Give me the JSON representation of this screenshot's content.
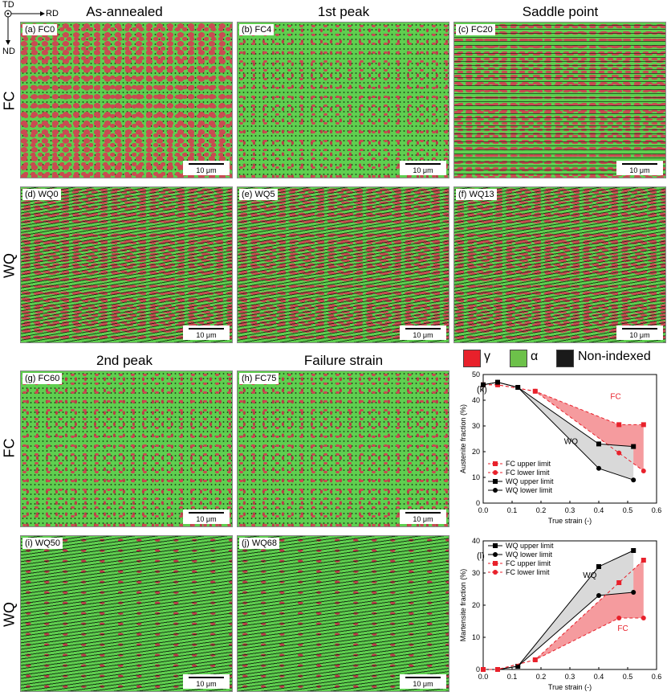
{
  "axes_orientation": {
    "td": "TD",
    "rd": "RD",
    "nd": "ND"
  },
  "column_titles": {
    "top": [
      "As-annealed",
      "1st peak",
      "Saddle point"
    ],
    "bottom": [
      "2nd peak",
      "Failure strain"
    ]
  },
  "row_labels": {
    "fc_top": "FC",
    "wq_top": "WQ",
    "fc_bottom": "FC",
    "wq_bottom": "WQ"
  },
  "panels": [
    {
      "label": "(a) FC0",
      "scale": "10 μm"
    },
    {
      "label": "(b) FC4",
      "scale": "10 μm"
    },
    {
      "label": "(c) FC20",
      "scale": "10 μm"
    },
    {
      "label": "(d) WQ0",
      "scale": "10 μm"
    },
    {
      "label": "(e) WQ5",
      "scale": "10 μm"
    },
    {
      "label": "(f) WQ13",
      "scale": "10 μm"
    },
    {
      "label": "(g) FC60",
      "scale": "10 μm"
    },
    {
      "label": "(h) FC75",
      "scale": "10 μm"
    },
    {
      "label": "(i) WQ50",
      "scale": "10 μm"
    },
    {
      "label": "(j) WQ68",
      "scale": "10 μm"
    }
  ],
  "phase_legend": [
    {
      "label": "γ",
      "color": "#e8212b"
    },
    {
      "label": "α",
      "color": "#6dc14a"
    },
    {
      "label": "Non-indexed",
      "color": "#1a1a1a"
    }
  ],
  "colors": {
    "fc": "#e8212b",
    "fc_fill": "#f59b9e",
    "wq": "#000000",
    "wq_fill": "#d9d9d9",
    "ferrite": "#5fcf4f",
    "austenite": "#c94b52"
  },
  "chart_data": [
    {
      "type": "line",
      "panel_label": "(k)",
      "xlabel": "True strain (-)",
      "ylabel": "Austenite fraction (%)",
      "xlim": [
        0,
        0.6
      ],
      "ylim": [
        0,
        50
      ],
      "xticks": [
        "0.0",
        "0.1",
        "0.2",
        "0.3",
        "0.4",
        "0.5",
        "0.6"
      ],
      "yticks": [
        "0",
        "10",
        "20",
        "30",
        "40",
        "50"
      ],
      "annotations": [
        {
          "text": "FC",
          "x": 0.44,
          "y": 40.5,
          "color": "#e8212b"
        },
        {
          "text": "WQ",
          "x": 0.28,
          "y": 23,
          "color": "#000000"
        }
      ],
      "legend_position": "bottom-left",
      "series": [
        {
          "name": "FC upper limit",
          "marker": "square",
          "color": "#e8212b",
          "dashed": true,
          "x": [
            0,
            0.05,
            0.18,
            0.47,
            0.555
          ],
          "y": [
            46,
            46,
            43.5,
            30.5,
            30.5
          ]
        },
        {
          "name": "FC lower limit",
          "marker": "circle",
          "color": "#e8212b",
          "dashed": true,
          "x": [
            0,
            0.05,
            0.18,
            0.47,
            0.555
          ],
          "y": [
            46,
            46,
            43.5,
            19.5,
            12.5
          ]
        },
        {
          "name": "WQ upper limit",
          "marker": "square",
          "color": "#000000",
          "dashed": false,
          "x": [
            0,
            0.05,
            0.12,
            0.4,
            0.52
          ],
          "y": [
            46,
            47,
            45,
            23,
            22
          ]
        },
        {
          "name": "WQ lower limit",
          "marker": "circle",
          "color": "#000000",
          "dashed": false,
          "x": [
            0,
            0.05,
            0.12,
            0.4,
            0.52
          ],
          "y": [
            46,
            47,
            45,
            13.5,
            9
          ]
        }
      ],
      "legend_order": [
        0,
        1,
        2,
        3
      ]
    },
    {
      "type": "line",
      "panel_label": "(l)",
      "xlabel": "True strain (-)",
      "ylabel": "Martensite fraction (%)",
      "xlim": [
        0,
        0.6
      ],
      "ylim": [
        0,
        40
      ],
      "xticks": [
        "0.0",
        "0.1",
        "0.2",
        "0.3",
        "0.4",
        "0.5",
        "0.6"
      ],
      "yticks": [
        "0",
        "10",
        "20",
        "30",
        "40"
      ],
      "annotations": [
        {
          "text": "WQ",
          "x": 0.345,
          "y": 28.5,
          "color": "#000000"
        },
        {
          "text": "FC",
          "x": 0.465,
          "y": 12,
          "color": "#e8212b"
        }
      ],
      "legend_position": "top-left",
      "series": [
        {
          "name": "WQ upper limit",
          "marker": "square",
          "color": "#000000",
          "dashed": false,
          "x": [
            0,
            0.05,
            0.12,
            0.4,
            0.52
          ],
          "y": [
            0,
            0,
            1,
            32,
            37
          ]
        },
        {
          "name": "WQ lower limit",
          "marker": "circle",
          "color": "#000000",
          "dashed": false,
          "x": [
            0,
            0.05,
            0.12,
            0.4,
            0.52
          ],
          "y": [
            0,
            0,
            1,
            23,
            24
          ]
        },
        {
          "name": "FC upper limit",
          "marker": "square",
          "color": "#e8212b",
          "dashed": true,
          "x": [
            0,
            0.05,
            0.18,
            0.47,
            0.555
          ],
          "y": [
            0,
            0,
            3,
            27,
            34
          ]
        },
        {
          "name": "FC lower limit",
          "marker": "circle",
          "color": "#e8212b",
          "dashed": true,
          "x": [
            0,
            0.05,
            0.18,
            0.47,
            0.555
          ],
          "y": [
            0,
            0,
            3,
            16,
            16
          ]
        }
      ],
      "legend_order": [
        0,
        1,
        2,
        3
      ]
    }
  ]
}
